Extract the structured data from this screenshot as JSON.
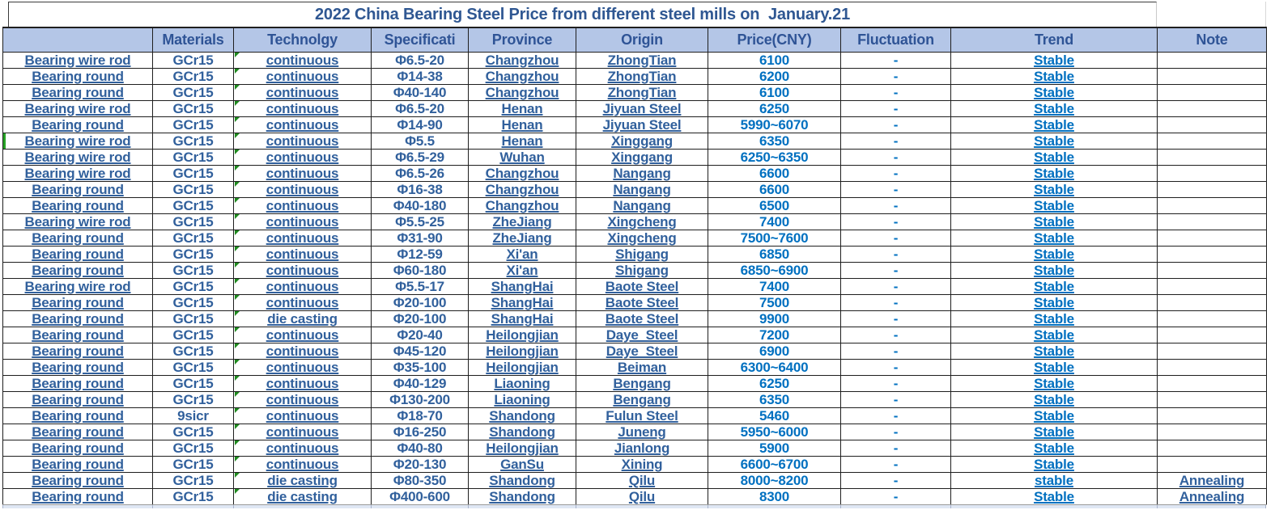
{
  "title": "2022 China Bearing Steel Price from different steel mills on  January.21",
  "columns": {
    "product": "",
    "material": "Materials",
    "technology": "Technolgy",
    "spec": "Specificati",
    "province": "Province",
    "origin": "Origin",
    "price": "Price(CNY)",
    "fluctuation": "Fluctuation",
    "trend": "Trend",
    "note": "Note"
  },
  "colors": {
    "header_bg": "#B4C6E7",
    "header_text": "#2F5496",
    "title_text": "#2F5792",
    "body_text": "#31609C",
    "value_text": "#0070C0",
    "grid_line": "#1F1F1F",
    "error_indicator_green": "#1F8A1F",
    "green_edge": "#27A325"
  },
  "rows": [
    {
      "product": "Bearing wire rod",
      "material": "GCr15",
      "technology": "continuous",
      "spec": "Φ6.5-20",
      "province": "Changzhou",
      "origin": "ZhongTian",
      "price": "6100",
      "fluctuation": "-",
      "trend": "Stable",
      "note": ""
    },
    {
      "product": "Bearing round",
      "material": "GCr15",
      "technology": "continuous",
      "spec": "Φ14-38",
      "province": "Changzhou",
      "origin": "ZhongTian",
      "price": "6200",
      "fluctuation": "-",
      "trend": "Stable",
      "note": ""
    },
    {
      "product": "Bearing round",
      "material": "GCr15",
      "technology": "continuous",
      "spec": "Φ40-140",
      "province": "Changzhou",
      "origin": "ZhongTian",
      "price": "6100",
      "fluctuation": "-",
      "trend": "Stable",
      "note": ""
    },
    {
      "product": "Bearing wire rod",
      "material": "GCr15",
      "technology": "continuous",
      "spec": "Φ6.5-20",
      "province": "Henan",
      "origin": "Jiyuan Steel",
      "price": "6250",
      "fluctuation": "-",
      "trend": "Stable",
      "note": ""
    },
    {
      "product": "Bearing round",
      "material": "GCr15",
      "technology": "continuous",
      "spec": "Φ14-90",
      "province": "Henan",
      "origin": "Jiyuan Steel",
      "price": "5990~6070",
      "fluctuation": "-",
      "trend": "Stable",
      "note": ""
    },
    {
      "product": "Bearing wire rod",
      "material": "GCr15",
      "technology": "continuous",
      "spec": "Φ5.5",
      "province": "Henan",
      "origin": "Xinggang",
      "price": "6350",
      "fluctuation": "-",
      "trend": "Stable",
      "note": ""
    },
    {
      "product": "Bearing wire rod",
      "material": "GCr15",
      "technology": "continuous",
      "spec": "Φ6.5-29",
      "province": "Wuhan",
      "origin": "Xinggang",
      "price": "6250~6350",
      "fluctuation": "-",
      "trend": "Stable",
      "note": ""
    },
    {
      "product": "Bearing wire rod",
      "material": "GCr15",
      "technology": "continuous",
      "spec": "Φ6.5-26",
      "province": "Changzhou",
      "origin": "Nangang",
      "price": "6600",
      "fluctuation": "-",
      "trend": "Stable",
      "note": ""
    },
    {
      "product": "Bearing round",
      "material": "GCr15",
      "technology": "continuous",
      "spec": "Φ16-38",
      "province": "Changzhou",
      "origin": "Nangang",
      "price": "6600",
      "fluctuation": "-",
      "trend": "Stable",
      "note": ""
    },
    {
      "product": "Bearing round",
      "material": "GCr15",
      "technology": "continuous",
      "spec": "Φ40-180",
      "province": "Changzhou",
      "origin": "Nangang",
      "price": "6500",
      "fluctuation": "-",
      "trend": "Stable",
      "note": ""
    },
    {
      "product": "Bearing wire rod",
      "material": "GCr15",
      "technology": "continuous",
      "spec": "Φ5.5-25",
      "province": "ZheJiang",
      "origin": "Xingcheng",
      "price": "7400",
      "fluctuation": "-",
      "trend": "Stable",
      "note": ""
    },
    {
      "product": "Bearing round",
      "material": "GCr15",
      "technology": "continuous",
      "spec": "Φ31-90",
      "province": "ZheJiang",
      "origin": "Xingcheng",
      "price": "7500~7600",
      "fluctuation": "-",
      "trend": "Stable",
      "note": ""
    },
    {
      "product": "Bearing round",
      "material": "GCr15",
      "technology": "continuous",
      "spec": "Φ12-59",
      "province": "Xi'an",
      "origin": "Shigang",
      "price": "6850",
      "fluctuation": "-",
      "trend": "Stable",
      "note": ""
    },
    {
      "product": "Bearing round",
      "material": "GCr15",
      "technology": "continuous",
      "spec": "Φ60-180",
      "province": "Xi'an",
      "origin": "Shigang",
      "price": "6850~6900",
      "fluctuation": "-",
      "trend": "Stable",
      "note": ""
    },
    {
      "product": "Bearing wire rod",
      "material": "GCr15",
      "technology": "continuous",
      "spec": "Φ5.5-17",
      "province": "ShangHai",
      "origin": "Baote Steel",
      "price": "7400",
      "fluctuation": "-",
      "trend": "Stable",
      "note": ""
    },
    {
      "product": "Bearing round",
      "material": "GCr15",
      "technology": "continuous",
      "spec": "Φ20-100",
      "province": "ShangHai",
      "origin": "Baote Steel",
      "price": "7500",
      "fluctuation": "-",
      "trend": "Stable",
      "note": ""
    },
    {
      "product": "Bearing round",
      "material": "GCr15",
      "technology": "die casting",
      "spec": "Φ20-100",
      "province": "ShangHai",
      "origin": "Baote Steel",
      "price": "9900",
      "fluctuation": "-",
      "trend": "Stable",
      "note": ""
    },
    {
      "product": "Bearing round",
      "material": "GCr15",
      "technology": "continuous",
      "spec": "Φ20-40",
      "province": "Heilongjian",
      "origin": "Daye  Steel",
      "price": "7200",
      "fluctuation": "-",
      "trend": "Stable",
      "note": ""
    },
    {
      "product": "Bearing round",
      "material": "GCr15",
      "technology": "continuous",
      "spec": "Φ45-120",
      "province": "Heilongjian",
      "origin": "Daye  Steel",
      "price": "6900",
      "fluctuation": "-",
      "trend": "Stable",
      "note": ""
    },
    {
      "product": "Bearing round",
      "material": "GCr15",
      "technology": "continuous",
      "spec": "Φ35-100",
      "province": "Heilongjian",
      "origin": "Beiman",
      "price": "6300~6400",
      "fluctuation": "-",
      "trend": "Stable",
      "note": ""
    },
    {
      "product": "Bearing round",
      "material": "GCr15",
      "technology": "continuous",
      "spec": "Φ40-129",
      "province": "Liaoning",
      "origin": "Bengang",
      "price": "6250",
      "fluctuation": "-",
      "trend": "Stable",
      "note": ""
    },
    {
      "product": "Bearing round",
      "material": "GCr15",
      "technology": "continuous",
      "spec": "Φ130-200",
      "province": "Liaoning",
      "origin": "Bengang",
      "price": "6350",
      "fluctuation": "-",
      "trend": "Stable",
      "note": ""
    },
    {
      "product": "Bearing round",
      "material": "9sicr",
      "technology": "continuous",
      "spec": "Φ18-70",
      "province": "Shandong",
      "origin": "Fulun Steel",
      "price": "5460",
      "fluctuation": "-",
      "trend": "Stable",
      "note": ""
    },
    {
      "product": "Bearing round",
      "material": "GCr15",
      "technology": "continuous",
      "spec": "Φ16-250",
      "province": "Shandong",
      "origin": "Juneng",
      "price": "5950~6000",
      "fluctuation": "-",
      "trend": "Stable",
      "note": ""
    },
    {
      "product": "Bearing round",
      "material": "GCr15",
      "technology": "continuous",
      "spec": "Φ40-80",
      "province": "Heilongjian",
      "origin": "Jianlong",
      "price": "5900",
      "fluctuation": "-",
      "trend": "Stable",
      "note": ""
    },
    {
      "product": "Bearing round",
      "material": "GCr15",
      "technology": "continuous",
      "spec": "Φ20-130",
      "province": "GanSu",
      "origin": "Xining",
      "price": "6600~6700",
      "fluctuation": "-",
      "trend": "Stable",
      "note": ""
    },
    {
      "product": "Bearing round",
      "material": "GCr15",
      "technology": "die casting",
      "spec": "Φ80-350",
      "province": "Shandong",
      "origin": "Qilu",
      "price": "8000~8200",
      "fluctuation": "-",
      "trend": "stable",
      "note": "Annealing"
    },
    {
      "product": "Bearing round",
      "material": "GCr15",
      "technology": "die casting",
      "spec": "Φ400-600",
      "province": "Shandong",
      "origin": "Qilu",
      "price": "8300",
      "fluctuation": "-",
      "trend": "Stable",
      "note": "Annealing"
    }
  ]
}
